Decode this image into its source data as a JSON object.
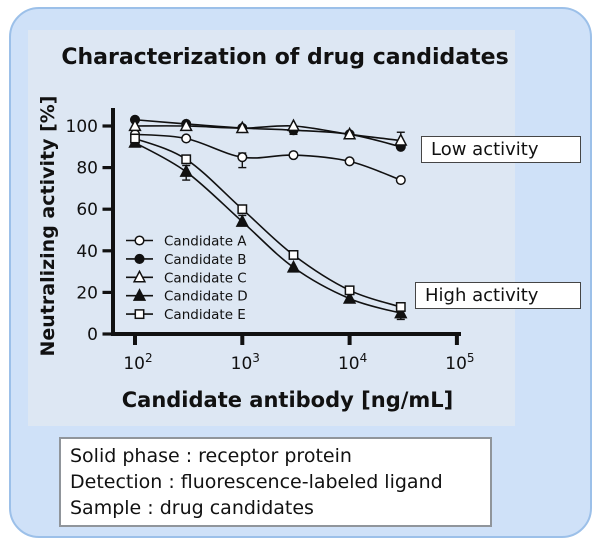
{
  "title": "Characterization of drug candidates",
  "annotations": {
    "low": "Low activity",
    "high": "High activity"
  },
  "info_box": {
    "lines": [
      "Solid phase : receptor protein",
      "Detection : fluorescence-labeled ligand",
      "Sample : drug candidates"
    ]
  },
  "colors": {
    "ink": "#111111",
    "marker_open_fill": "#ffffff",
    "card_bg": "#cfe1f8",
    "panel_bg": "#dde7f3",
    "card_border": "#9cc0e9"
  },
  "chart_data": {
    "type": "line",
    "title": "Characterization of drug candidates",
    "xlabel": "Candidate antibody [ng/mL]",
    "ylabel": "Neutralizing activity [%]",
    "x_scale": "log",
    "xlim": [
      100,
      100000
    ],
    "ylim": [
      0,
      110
    ],
    "grid": false,
    "legend_position": "lower-left-inside",
    "x": [
      100,
      300,
      1000,
      3000,
      10000,
      30000
    ],
    "x_ticks": [
      {
        "base": "10",
        "exp": "2",
        "value": 100
      },
      {
        "base": "10",
        "exp": "3",
        "value": 1000
      },
      {
        "base": "10",
        "exp": "4",
        "value": 10000
      },
      {
        "base": "10",
        "exp": "5",
        "value": 100000
      }
    ],
    "y_ticks": [
      0,
      20,
      40,
      60,
      80,
      100
    ],
    "series": [
      {
        "name": "Candidate A",
        "marker": "circle-open",
        "values": [
          96,
          94,
          85,
          86,
          83,
          74
        ],
        "errors": [
          {
            "x": 1000,
            "plus": 2,
            "minus": 5
          }
        ]
      },
      {
        "name": "Candidate B",
        "marker": "circle-filled",
        "values": [
          103,
          101,
          99,
          98,
          96,
          90
        ],
        "errors": [
          {
            "x": 3000,
            "plus": 1,
            "minus": 2
          }
        ]
      },
      {
        "name": "Candidate C",
        "marker": "triangle-open",
        "values": [
          100,
          100,
          99,
          100,
          96,
          93
        ],
        "errors": [
          {
            "x": 30000,
            "plus": 4,
            "minus": 2
          }
        ]
      },
      {
        "name": "Candidate D",
        "marker": "triangle-filled",
        "values": [
          92,
          78,
          54,
          32,
          17,
          10
        ],
        "errors": [
          {
            "x": 300,
            "plus": 3,
            "minus": 4
          },
          {
            "x": 1000,
            "plus": 3,
            "minus": 2
          },
          {
            "x": 30000,
            "plus": 1,
            "minus": 3
          }
        ]
      },
      {
        "name": "Candidate E",
        "marker": "square-open",
        "values": [
          94,
          84,
          60,
          38,
          21,
          13
        ],
        "errors": []
      }
    ]
  }
}
